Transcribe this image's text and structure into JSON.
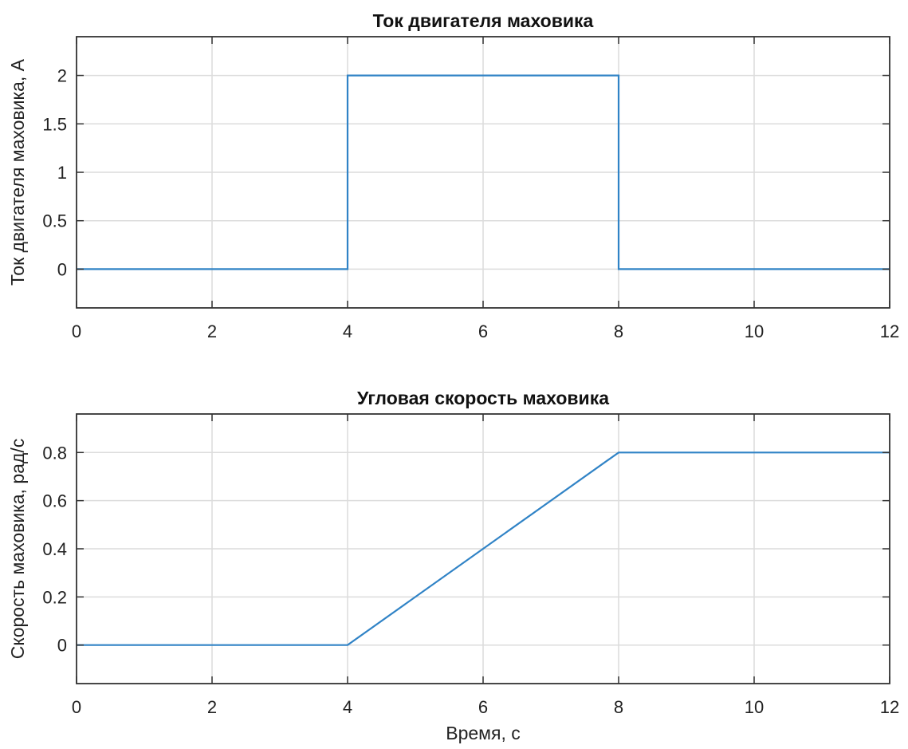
{
  "chart_data": [
    {
      "type": "line",
      "title": "Ток двигателя маховика",
      "xlabel": "",
      "ylabel": "Ток двигателя маховика, А",
      "xlim": [
        0,
        12
      ],
      "ylim": [
        -0.4,
        2.4
      ],
      "xticks": [
        0,
        2,
        4,
        6,
        8,
        10,
        12
      ],
      "xtick_labels": [
        "0",
        "2",
        "4",
        "6",
        "8",
        "10",
        "12"
      ],
      "yticks": [
        0,
        0.5,
        1,
        1.5,
        2
      ],
      "ytick_labels": [
        "0",
        "0.5",
        "1",
        "1.5",
        "2"
      ],
      "grid": true,
      "series": [
        {
          "color": "#3083c6",
          "x": [
            0,
            4,
            4,
            8,
            8,
            12
          ],
          "y": [
            0,
            0,
            2,
            2,
            0,
            0
          ]
        }
      ]
    },
    {
      "type": "line",
      "title": "Угловая скорость маховика",
      "xlabel": "Время, с",
      "ylabel": "Скорость маховика, рад/с",
      "xlim": [
        0,
        12
      ],
      "ylim": [
        -0.16,
        0.96
      ],
      "xticks": [
        0,
        2,
        4,
        6,
        8,
        10,
        12
      ],
      "xtick_labels": [
        "0",
        "2",
        "4",
        "6",
        "8",
        "10",
        "12"
      ],
      "yticks": [
        0,
        0.2,
        0.4,
        0.6,
        0.8
      ],
      "ytick_labels": [
        "0",
        "0.2",
        "0.4",
        "0.6",
        "0.8"
      ],
      "grid": true,
      "series": [
        {
          "color": "#3083c6",
          "x": [
            0,
            4,
            8,
            12
          ],
          "y": [
            0,
            0,
            0.8,
            0.8
          ]
        }
      ]
    }
  ]
}
